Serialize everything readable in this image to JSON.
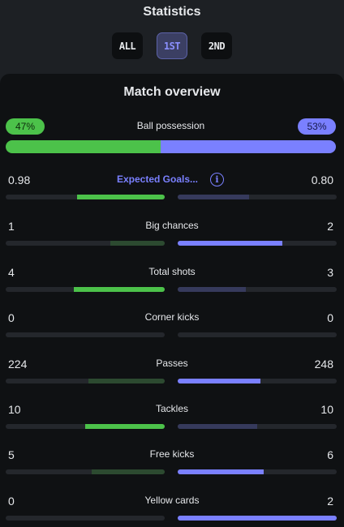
{
  "header": {
    "title": "Statistics"
  },
  "tabs": [
    {
      "label": "ALL",
      "active": false
    },
    {
      "label": "1ST",
      "active": true
    },
    {
      "label": "2ND",
      "active": false
    }
  ],
  "overview": {
    "title": "Match overview",
    "possession": {
      "label": "Ball possession",
      "home": "47%",
      "away": "53%",
      "home_fraction": 0.47
    }
  },
  "colors": {
    "home_strong": "#4cc24a",
    "home_weak": "#2c4a30",
    "away_strong": "#7a80ff",
    "away_weak": "#363a5c"
  },
  "stats": [
    {
      "label": "Expected Goals...",
      "home": "0.98",
      "away": "0.80",
      "home_fill": 0.55,
      "away_fill": 0.45,
      "home_leads": true,
      "link": true
    },
    {
      "label": "Big chances",
      "home": "1",
      "away": "2",
      "home_fill": 0.34,
      "away_fill": 0.66,
      "home_leads": false
    },
    {
      "label": "Total shots",
      "home": "4",
      "away": "3",
      "home_fill": 0.57,
      "away_fill": 0.43,
      "home_leads": true
    },
    {
      "label": "Corner kicks",
      "home": "0",
      "away": "0",
      "home_fill": 0,
      "away_fill": 0,
      "home_leads": false
    },
    {
      "label": "Passes",
      "home": "224",
      "away": "248",
      "home_fill": 0.48,
      "away_fill": 0.52,
      "home_leads": false
    },
    {
      "label": "Tackles",
      "home": "10",
      "away": "10",
      "home_fill": 0.5,
      "away_fill": 0.5,
      "home_leads": true
    },
    {
      "label": "Free kicks",
      "home": "5",
      "away": "6",
      "home_fill": 0.46,
      "away_fill": 0.54,
      "home_leads": false
    },
    {
      "label": "Yellow cards",
      "home": "0",
      "away": "2",
      "home_fill": 0,
      "away_fill": 1.0,
      "home_leads": false
    }
  ]
}
